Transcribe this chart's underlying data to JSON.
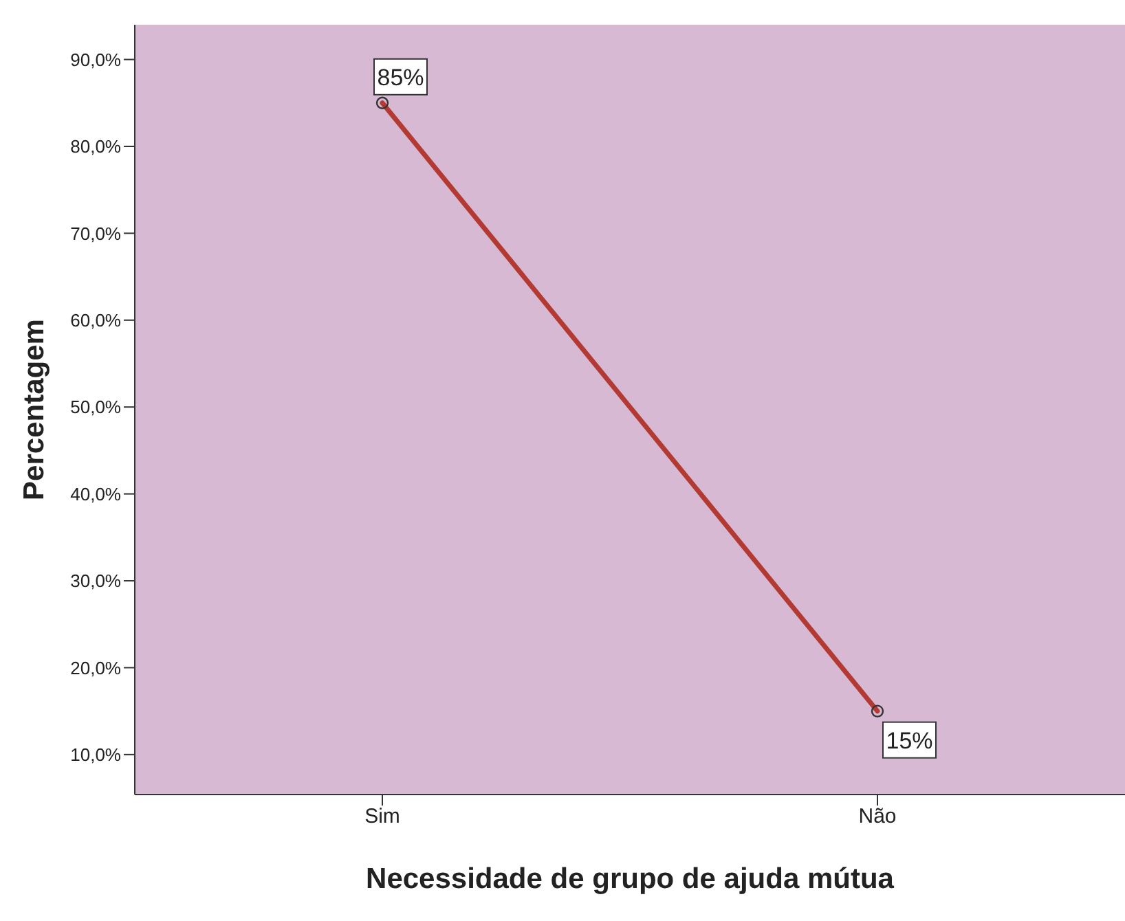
{
  "chart_data": {
    "type": "line",
    "xlabel": "Necessidade de grupo de ajuda mútua",
    "ylabel": "Percentagem",
    "categories": [
      "Sim",
      "Não"
    ],
    "values": [
      85,
      15
    ],
    "value_labels": [
      "85%",
      "15%"
    ],
    "color": "#b33a32",
    "marker": "circle",
    "ylim": [
      5.4,
      94
    ],
    "yticks": [
      {
        "value": 10,
        "label": "10,0%"
      },
      {
        "value": 20,
        "label": "20,0%"
      },
      {
        "value": 30,
        "label": "30,0%"
      },
      {
        "value": 40,
        "label": "40,0%"
      },
      {
        "value": 50,
        "label": "50,0%"
      },
      {
        "value": 60,
        "label": "60,0%"
      },
      {
        "value": 70,
        "label": "70,0%"
      },
      {
        "value": 80,
        "label": "80,0%"
      },
      {
        "value": 90,
        "label": "90,0%"
      }
    ]
  }
}
